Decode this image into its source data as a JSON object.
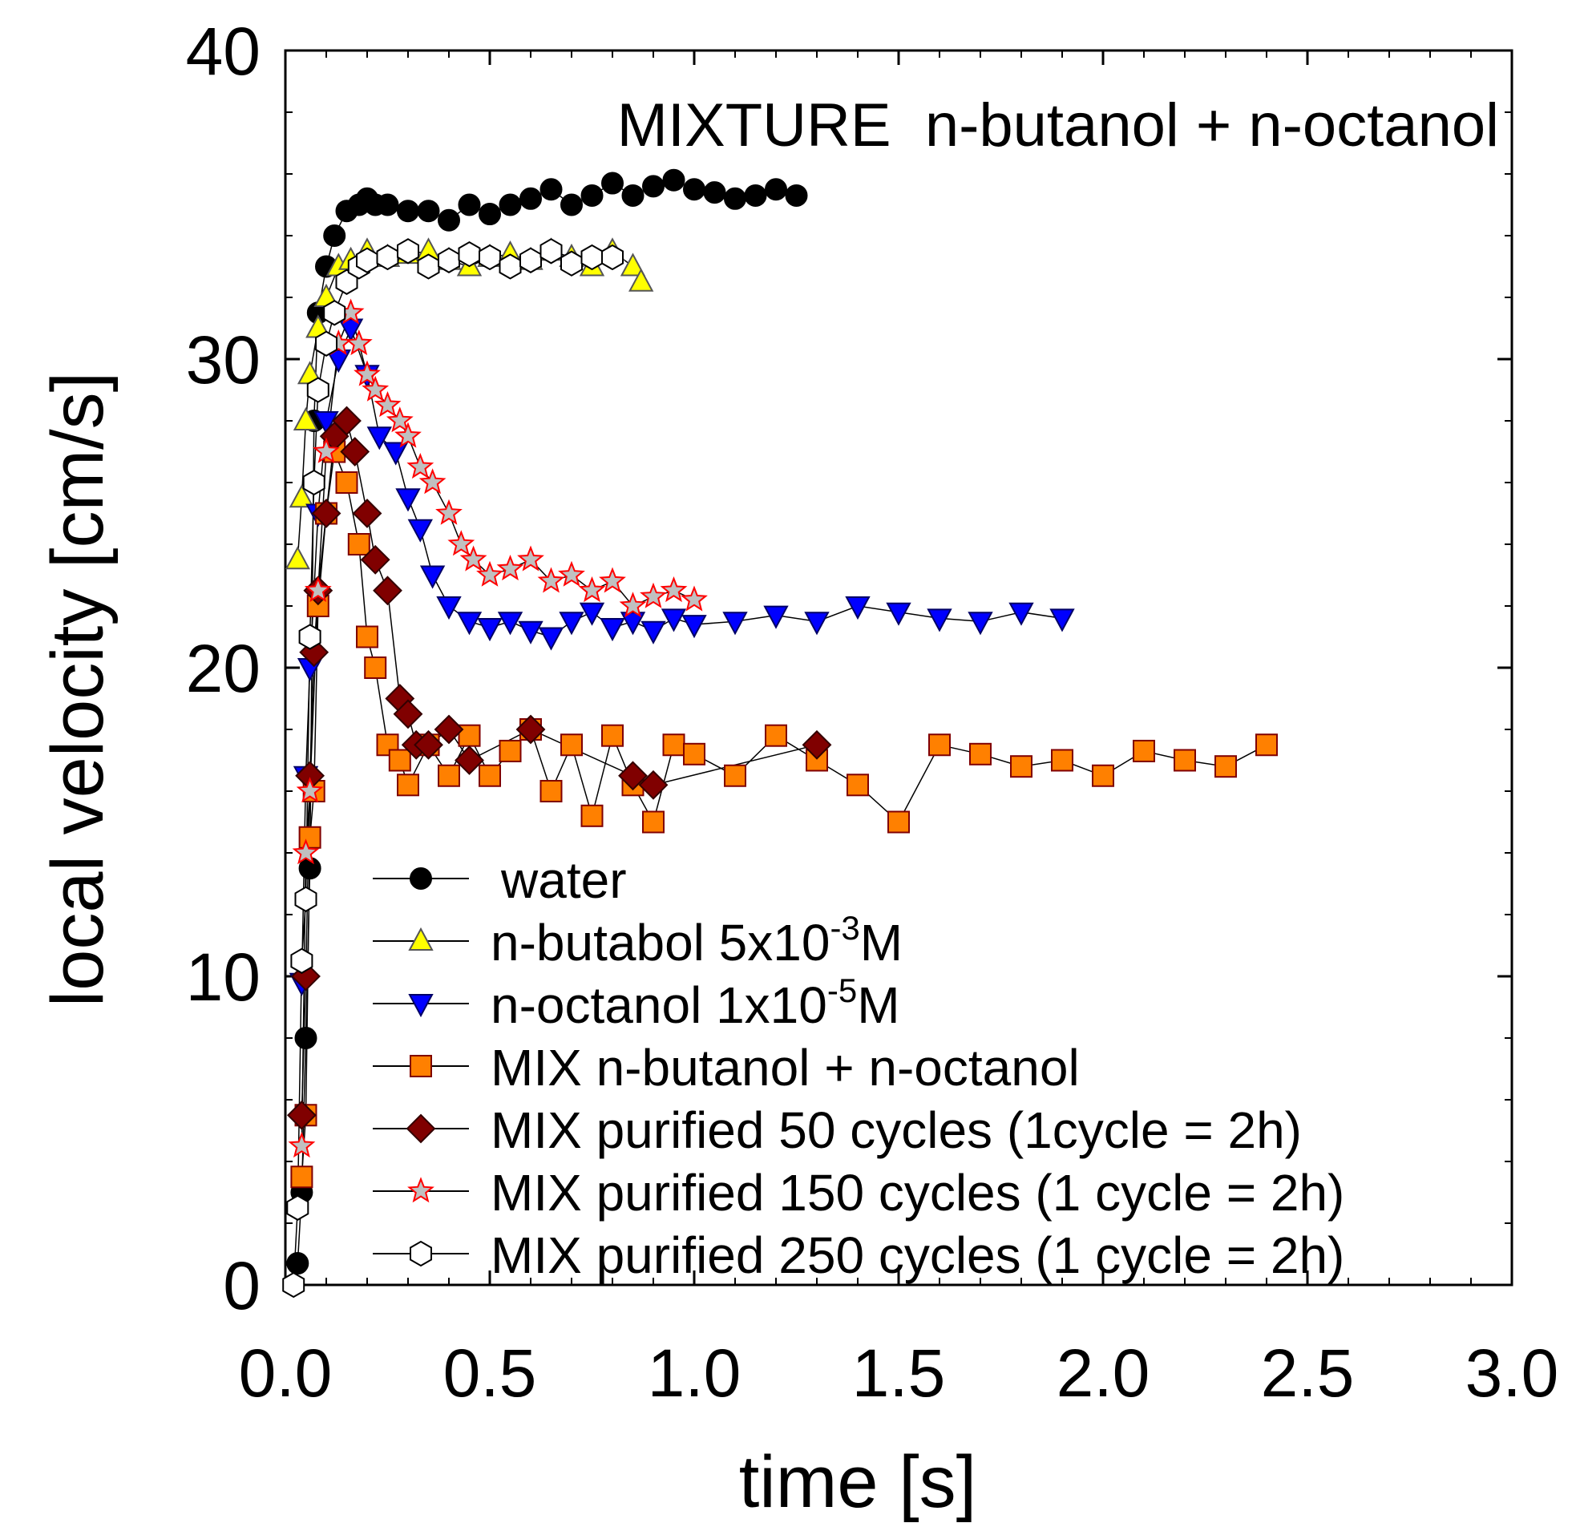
{
  "chart_data": {
    "type": "scatter",
    "title": "MIXTURE  n-butanol + n-octanol",
    "xlabel": "time [s]",
    "ylabel": "local velocity [cm/s]",
    "xlim": [
      0,
      3
    ],
    "ylim": [
      0,
      40
    ],
    "x_ticks": [
      "0.0",
      "0.5",
      "1.0",
      "1.5",
      "2.0",
      "2.5",
      "3.0"
    ],
    "y_ticks": [
      "0",
      "10",
      "20",
      "30",
      "40"
    ],
    "grid": false,
    "legend_position": "bottom-center",
    "series": [
      {
        "name": "water",
        "legend_main": "water",
        "legend_sup": "",
        "legend_tail": "",
        "marker": "circle",
        "fill": "#000000",
        "stroke": "#000000",
        "x": [
          0.03,
          0.04,
          0.05,
          0.06,
          0.07,
          0.08,
          0.1,
          0.12,
          0.15,
          0.18,
          0.2,
          0.22,
          0.25,
          0.3,
          0.35,
          0.4,
          0.45,
          0.5,
          0.55,
          0.6,
          0.65,
          0.7,
          0.75,
          0.8,
          0.85,
          0.9,
          0.95,
          1.0,
          1.05,
          1.1,
          1.15,
          1.2,
          1.25
        ],
        "y": [
          0.7,
          3,
          8,
          13.5,
          28,
          31.5,
          33,
          34,
          34.8,
          35,
          35.2,
          35,
          35,
          34.8,
          34.8,
          34.5,
          35,
          34.7,
          35,
          35.2,
          35.5,
          35,
          35.3,
          35.7,
          35.3,
          35.6,
          35.8,
          35.5,
          35.4,
          35.2,
          35.3,
          35.5,
          35.3
        ]
      },
      {
        "name": "n-butabol 5x10-3M",
        "legend_main": "n-butabol 5x10",
        "legend_sup": "-3",
        "legend_tail": "M",
        "marker": "triangle-up",
        "fill": "#ffff00",
        "stroke": "#555555",
        "x": [
          0.03,
          0.04,
          0.05,
          0.06,
          0.08,
          0.1,
          0.13,
          0.16,
          0.2,
          0.25,
          0.3,
          0.35,
          0.4,
          0.45,
          0.5,
          0.55,
          0.6,
          0.65,
          0.7,
          0.75,
          0.8,
          0.85,
          0.87
        ],
        "y": [
          23.5,
          25.5,
          28,
          29.5,
          31,
          32,
          33,
          33.2,
          33.5,
          33.3,
          33.4,
          33.5,
          33.2,
          33,
          33.3,
          33.4,
          33.2,
          33.5,
          33.3,
          33,
          33.5,
          33,
          32.5
        ]
      },
      {
        "name": "n-octanol 1x10-5M",
        "legend_main": "n-octanol 1x10",
        "legend_sup": "-5",
        "legend_tail": "M",
        "marker": "triangle-down",
        "fill": "#0000ff",
        "stroke": "#000066",
        "x": [
          0.04,
          0.05,
          0.06,
          0.08,
          0.1,
          0.13,
          0.16,
          0.2,
          0.23,
          0.27,
          0.3,
          0.33,
          0.36,
          0.4,
          0.45,
          0.5,
          0.55,
          0.6,
          0.65,
          0.7,
          0.75,
          0.8,
          0.85,
          0.9,
          0.95,
          1.0,
          1.1,
          1.2,
          1.3,
          1.4,
          1.5,
          1.6,
          1.7,
          1.8,
          1.9
        ],
        "y": [
          9.8,
          16.5,
          20,
          25,
          28,
          30,
          31,
          29.5,
          27.5,
          27,
          25.5,
          24.5,
          23,
          22,
          21.5,
          21.3,
          21.5,
          21.2,
          21,
          21.5,
          21.8,
          21.3,
          21.5,
          21.2,
          21.6,
          21.4,
          21.5,
          21.7,
          21.5,
          22,
          21.8,
          21.6,
          21.5,
          21.8,
          21.6
        ]
      },
      {
        "name": "MIX n-butanol + n-octanol",
        "legend_main": "MIX n-butanol + n-octanol",
        "legend_sup": "",
        "legend_tail": "",
        "marker": "square",
        "fill": "#ff8000",
        "stroke": "#800000",
        "x": [
          0.04,
          0.05,
          0.06,
          0.07,
          0.08,
          0.1,
          0.12,
          0.15,
          0.18,
          0.2,
          0.22,
          0.25,
          0.28,
          0.3,
          0.35,
          0.4,
          0.45,
          0.5,
          0.55,
          0.6,
          0.65,
          0.7,
          0.75,
          0.8,
          0.85,
          0.9,
          0.95,
          1.0,
          1.1,
          1.2,
          1.3,
          1.4,
          1.5,
          1.6,
          1.7,
          1.8,
          1.9,
          2.0,
          2.1,
          2.2,
          2.3,
          2.4
        ],
        "y": [
          3.5,
          5.5,
          14.5,
          16,
          22,
          25,
          27,
          26,
          24,
          21,
          20,
          17.5,
          17,
          16.2,
          17.5,
          16.5,
          17.8,
          16.5,
          17.3,
          18,
          16,
          17.5,
          15.2,
          17.8,
          16.2,
          15,
          17.5,
          17.2,
          16.5,
          17.8,
          17,
          16.2,
          15,
          17.5,
          17.2,
          16.8,
          17,
          16.5,
          17.3,
          17,
          16.8,
          17.5
        ]
      },
      {
        "name": "MIX purified 50 cycles (1cycle = 2h)",
        "legend_main": "MIX purified 50 cycles (1cycle = 2h)",
        "legend_sup": "",
        "legend_tail": "",
        "marker": "diamond",
        "fill": "#800000",
        "stroke": "#330000",
        "x": [
          0.04,
          0.05,
          0.06,
          0.07,
          0.08,
          0.1,
          0.12,
          0.15,
          0.17,
          0.2,
          0.22,
          0.25,
          0.28,
          0.3,
          0.32,
          0.35,
          0.4,
          0.45,
          0.6,
          0.85,
          0.9,
          1.3
        ],
        "y": [
          5.5,
          10,
          16.5,
          20.5,
          22.5,
          25,
          27.5,
          28,
          27,
          25,
          23.5,
          22.5,
          19,
          18.5,
          17.5,
          17.5,
          18,
          17,
          18,
          16.5,
          16.2,
          17.5
        ]
      },
      {
        "name": "MIX purified 150 cycles (1 cycle = 2h)",
        "legend_main": "MIX purified 150 cycles (1 cycle = 2h)",
        "legend_sup": "",
        "legend_tail": "",
        "marker": "star",
        "fill": "#c0c0c0",
        "stroke": "#ff0000",
        "x": [
          0.04,
          0.05,
          0.06,
          0.08,
          0.1,
          0.13,
          0.16,
          0.18,
          0.2,
          0.22,
          0.25,
          0.28,
          0.3,
          0.33,
          0.36,
          0.4,
          0.43,
          0.46,
          0.5,
          0.55,
          0.6,
          0.65,
          0.7,
          0.75,
          0.8,
          0.85,
          0.9,
          0.95,
          1.0
        ],
        "y": [
          4.5,
          14,
          16,
          22.5,
          27,
          30.5,
          31.5,
          30.5,
          29.5,
          29,
          28.5,
          28,
          27.5,
          26.5,
          26,
          25,
          24,
          23.5,
          23,
          23.2,
          23.5,
          22.8,
          23,
          22.5,
          22.8,
          22,
          22.3,
          22.5,
          22.2
        ]
      },
      {
        "name": "MIX purified 250 cycles (1 cycle = 2h)",
        "legend_main": "MIX purified 250 cycles (1 cycle = 2h)",
        "legend_sup": "",
        "legend_tail": "",
        "marker": "hexagon",
        "fill": "#ffffff",
        "stroke": "#000000",
        "x": [
          0.02,
          0.03,
          0.04,
          0.05,
          0.06,
          0.07,
          0.08,
          0.1,
          0.12,
          0.15,
          0.18,
          0.2,
          0.25,
          0.3,
          0.35,
          0.4,
          0.45,
          0.5,
          0.55,
          0.6,
          0.65,
          0.7,
          0.75,
          0.8
        ],
        "y": [
          0,
          2.5,
          10.5,
          12.5,
          21,
          26,
          29,
          30.5,
          31.5,
          32.5,
          33,
          33.2,
          33.3,
          33.5,
          33,
          33.2,
          33.4,
          33.3,
          33,
          33.2,
          33.5,
          33.1,
          33.3,
          33.3
        ]
      }
    ]
  }
}
